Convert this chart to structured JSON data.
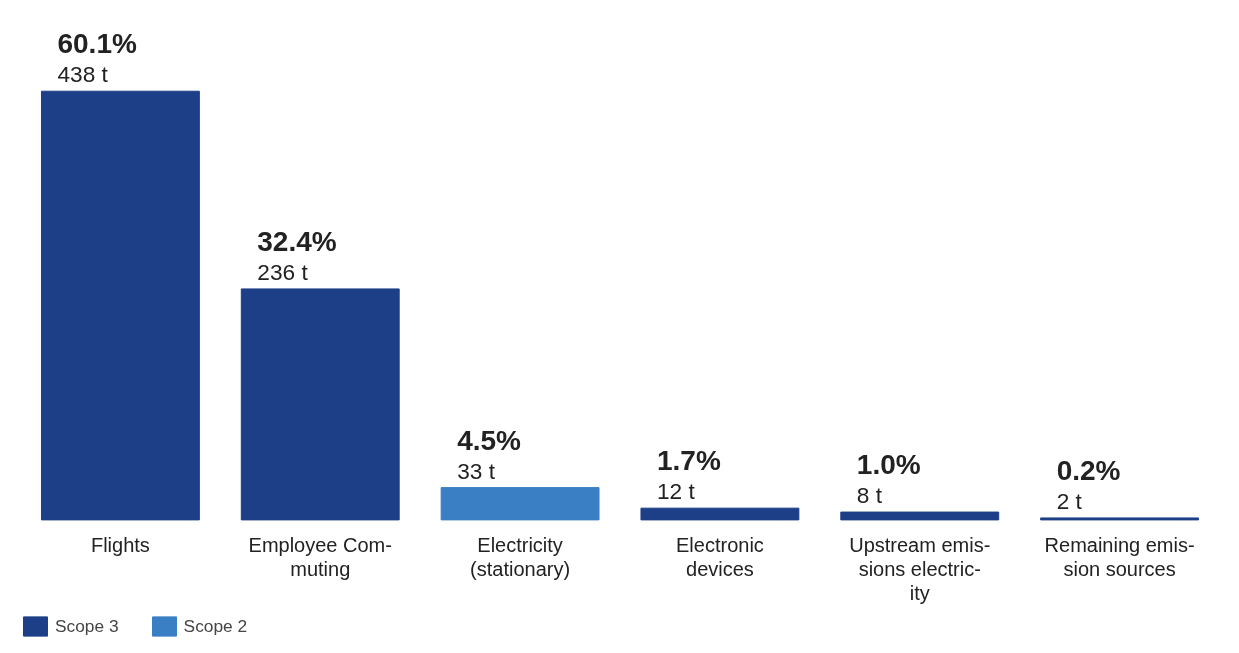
{
  "chart_data": {
    "type": "bar",
    "categories": [
      "Flights",
      "Employee Com-\nmuting",
      "Electricity\n(stationary)",
      "Electronic\ndevices",
      "Upstream emis-\nsions electric-\nity",
      "Remaining emis-\nsion sources"
    ],
    "series": [
      {
        "name": "Scope 3",
        "color": "#1c3f87",
        "values": [
          438,
          236,
          null,
          12,
          8,
          2
        ],
        "value_labels": [
          "60.1%\n438 t",
          "32.4%\n236 t",
          null,
          "1.7%\n12 t",
          "1.0%\n8 t",
          "0.2%\n2 t"
        ]
      },
      {
        "name": "Scope 2",
        "color": "#3a7fc4",
        "values": [
          null,
          null,
          33,
          null,
          null,
          null
        ],
        "value_labels": [
          null,
          null,
          "4.5%\n33 t",
          null,
          null,
          null
        ]
      }
    ],
    "legend": "bottom left",
    "grid": false
  }
}
